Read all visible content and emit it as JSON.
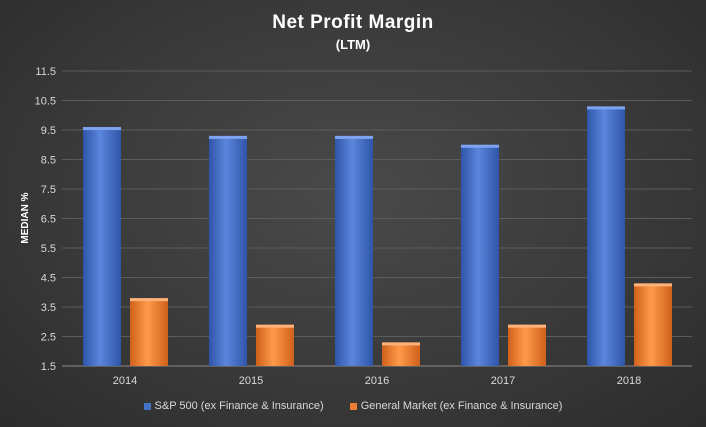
{
  "chart_data": {
    "type": "bar",
    "title": "Net Profit  Margin",
    "subtitle": "(LTM)",
    "xlabel": "",
    "ylabel": "MEDIAN %",
    "categories": [
      "2014",
      "2015",
      "2016",
      "2017",
      "2018"
    ],
    "series": [
      {
        "name": "S&P 500 (ex Finance & Insurance)",
        "values": [
          9.6,
          9.3,
          9.3,
          9.0,
          10.3
        ],
        "color": "#4472c4"
      },
      {
        "name": "General Market (ex Finance & Insurance)",
        "values": [
          3.8,
          2.9,
          2.3,
          2.9,
          4.3
        ],
        "color": "#ed7d31"
      }
    ],
    "ylim": [
      1.5,
      11.5
    ],
    "yticks": [
      "11.5",
      "10.5",
      "9.5",
      "8.5",
      "7.5",
      "6.5",
      "5.5",
      "4.5",
      "3.5",
      "2.5",
      "1.5"
    ],
    "grid": true,
    "legend_position": "bottom"
  }
}
